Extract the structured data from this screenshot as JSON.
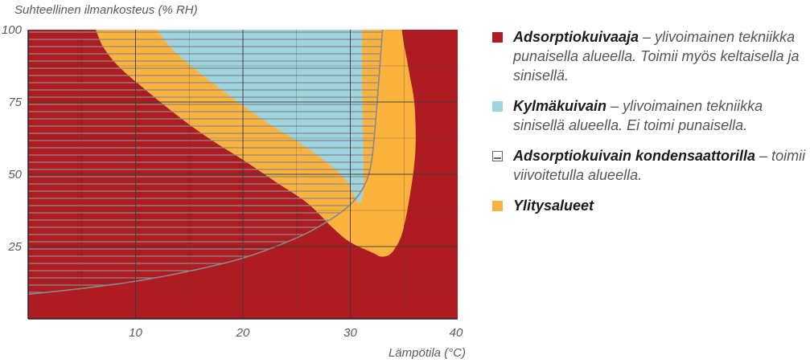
{
  "colors": {
    "red": "#ae1c22",
    "yellow": "#fbb33e",
    "blue": "#9dd4de",
    "grid": "#3a3a3a",
    "hatch": "#8a8a8a"
  },
  "chart_data": {
    "type": "area",
    "ylabel": "Suhteellinen ilmankosteus (% RH)",
    "xlabel": "Lämpötila (°C)",
    "xlim": [
      0,
      40
    ],
    "ylim": [
      0,
      100
    ],
    "x_ticks": [
      10,
      20,
      30,
      40
    ],
    "y_ticks": [
      25,
      50,
      75,
      100
    ],
    "regions": [
      {
        "name": "Adsorptiokuivaaja",
        "color": "#ae1c22",
        "boundary": [
          [
            0,
            0
          ],
          [
            40,
            0
          ],
          [
            40,
            100
          ],
          [
            0,
            100
          ]
        ]
      },
      {
        "name": "Ylitysalueet",
        "color": "#fbb33e",
        "boundary": [
          [
            6.3,
            100
          ],
          [
            7,
            94
          ],
          [
            8.5,
            87
          ],
          [
            11,
            79
          ],
          [
            14,
            70
          ],
          [
            17,
            62
          ],
          [
            20,
            55
          ],
          [
            23,
            47.5
          ],
          [
            26,
            40
          ],
          [
            28.5,
            31
          ],
          [
            30,
            26.5
          ],
          [
            32,
            23
          ],
          [
            33,
            21.5
          ],
          [
            34,
            23.5
          ],
          [
            35,
            32
          ],
          [
            36,
            55
          ],
          [
            36,
            73
          ],
          [
            35.5,
            85
          ],
          [
            35,
            95
          ],
          [
            34.8,
            100
          ]
        ]
      },
      {
        "name": "Kylmäkuivain",
        "color": "#9dd4de",
        "boundary": [
          [
            12,
            100
          ],
          [
            13.5,
            93
          ],
          [
            16,
            85
          ],
          [
            19,
            76.5
          ],
          [
            22,
            68.5
          ],
          [
            25,
            61.5
          ],
          [
            27.5,
            55
          ],
          [
            29.5,
            48.5
          ],
          [
            30.3,
            43
          ],
          [
            30.8,
            40
          ],
          [
            31.2,
            44
          ],
          [
            31.2,
            60
          ],
          [
            31.1,
            80
          ],
          [
            31.1,
            100
          ]
        ]
      },
      {
        "name": "Adsorptiokuivain kondensaattorilla",
        "pattern": "horizontal-lines",
        "boundary": [
          [
            0,
            8.5
          ],
          [
            5,
            10.5
          ],
          [
            10,
            13
          ],
          [
            15,
            16.5
          ],
          [
            20,
            21
          ],
          [
            25,
            28
          ],
          [
            28,
            34
          ],
          [
            30,
            39.5
          ],
          [
            31.3,
            46
          ],
          [
            32,
            55
          ],
          [
            32.5,
            75
          ],
          [
            33,
            100
          ],
          [
            0,
            100
          ]
        ]
      }
    ]
  },
  "legend": [
    {
      "color": "#ae1c22",
      "label": "Adsorptiokuivaaja",
      "text": " – ylivoimainen tekniikka punaisella alueella. Toimii myös keltaisella ja sinisellä."
    },
    {
      "color": "#9dd4de",
      "label": "Kylmäkuivain",
      "text": " – ylivoimainen tekniikka sinisellä alueella. Ei toimi punaisella."
    },
    {
      "color": "hatch",
      "label": "Adsorptiokuivain kondensaattorilla",
      "text": " – toimii viivoitetulla alueella."
    },
    {
      "color": "#fbb33e",
      "label": "Ylitysalueet",
      "text": ""
    }
  ]
}
